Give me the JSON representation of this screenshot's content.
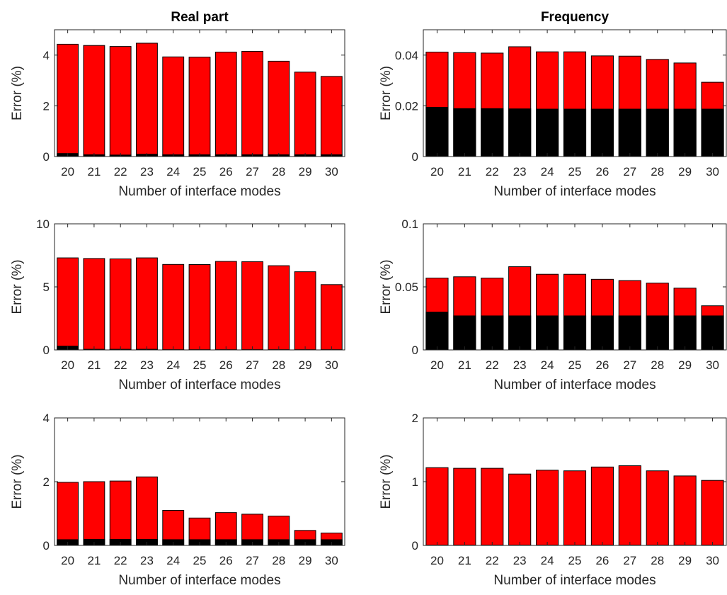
{
  "colors": {
    "total_bar": "#ff0000",
    "inner_bar": "#000000",
    "axis": "#262626"
  },
  "column_titles": [
    "Real part",
    "Frequency"
  ],
  "chart_data": [
    {
      "type": "bar",
      "title": "Real part",
      "xlabel": "Number of interface modes",
      "ylabel": "Error (%)",
      "categories": [
        "20",
        "21",
        "22",
        "23",
        "24",
        "25",
        "26",
        "27",
        "28",
        "29",
        "30"
      ],
      "ylim": [
        0,
        5
      ],
      "yticks": [
        0,
        2,
        4
      ],
      "series": [
        {
          "values": [
            4.43,
            4.38,
            4.34,
            4.47,
            3.93,
            3.92,
            4.12,
            4.15,
            3.76,
            3.33,
            3.16
          ]
        },
        {
          "values": [
            0.12,
            0.07,
            0.06,
            0.09,
            0.07,
            0.07,
            0.07,
            0.07,
            0.07,
            0.07,
            0.07
          ]
        }
      ]
    },
    {
      "type": "bar",
      "title": "Frequency",
      "xlabel": "Number of interface modes",
      "ylabel": "Error (%)",
      "categories": [
        "20",
        "21",
        "22",
        "23",
        "24",
        "25",
        "26",
        "27",
        "28",
        "29",
        "30"
      ],
      "ylim": [
        0,
        0.05
      ],
      "yticks": [
        0,
        0.02,
        0.04
      ],
      "series": [
        {
          "values": [
            0.0412,
            0.041,
            0.0408,
            0.0433,
            0.0413,
            0.0413,
            0.0397,
            0.0396,
            0.0383,
            0.0369,
            0.0293
          ]
        },
        {
          "values": [
            0.0194,
            0.0189,
            0.0189,
            0.0188,
            0.0187,
            0.0187,
            0.0187,
            0.0187,
            0.0187,
            0.0187,
            0.0187
          ]
        }
      ]
    },
    {
      "type": "bar",
      "title": "",
      "xlabel": "Number of interface modes",
      "ylabel": "Error (%)",
      "categories": [
        "20",
        "21",
        "22",
        "23",
        "24",
        "25",
        "26",
        "27",
        "28",
        "29",
        "30"
      ],
      "ylim": [
        0,
        10
      ],
      "yticks": [
        0,
        5,
        10
      ],
      "series": [
        {
          "values": [
            7.3,
            7.25,
            7.22,
            7.3,
            6.78,
            6.77,
            7.02,
            7.0,
            6.68,
            6.2,
            5.18
          ]
        },
        {
          "values": [
            0.3,
            0.05,
            0.05,
            0.05,
            0.02,
            0.02,
            0.02,
            0.02,
            0.02,
            0.02,
            0.02
          ]
        }
      ]
    },
    {
      "type": "bar",
      "title": "",
      "xlabel": "Number of interface modes",
      "ylabel": "Error (%)",
      "categories": [
        "20",
        "21",
        "22",
        "23",
        "24",
        "25",
        "26",
        "27",
        "28",
        "29",
        "30"
      ],
      "ylim": [
        0,
        0.1
      ],
      "yticks": [
        0,
        0.05,
        0.1
      ],
      "series": [
        {
          "values": [
            0.057,
            0.058,
            0.057,
            0.066,
            0.06,
            0.06,
            0.056,
            0.055,
            0.053,
            0.049,
            0.035
          ]
        },
        {
          "values": [
            0.03,
            0.027,
            0.027,
            0.027,
            0.027,
            0.027,
            0.027,
            0.027,
            0.027,
            0.027,
            0.027
          ]
        }
      ]
    },
    {
      "type": "bar",
      "title": "",
      "xlabel": "Number of interface modes",
      "ylabel": "Error (%)",
      "categories": [
        "20",
        "21",
        "22",
        "23",
        "24",
        "25",
        "26",
        "27",
        "28",
        "29",
        "30"
      ],
      "ylim": [
        0,
        4
      ],
      "yticks": [
        0,
        2,
        4
      ],
      "series": [
        {
          "values": [
            1.98,
            2.0,
            2.02,
            2.15,
            1.1,
            0.86,
            1.03,
            0.98,
            0.92,
            0.47,
            0.39
          ]
        },
        {
          "values": [
            0.18,
            0.19,
            0.19,
            0.19,
            0.18,
            0.18,
            0.18,
            0.18,
            0.18,
            0.18,
            0.18
          ]
        }
      ]
    },
    {
      "type": "bar",
      "title": "",
      "xlabel": "Number of interface modes",
      "ylabel": "Error (%)",
      "categories": [
        "20",
        "21",
        "22",
        "23",
        "24",
        "25",
        "26",
        "27",
        "28",
        "29",
        "30"
      ],
      "ylim": [
        0,
        2
      ],
      "yticks": [
        0,
        1,
        2
      ],
      "series": [
        {
          "values": [
            1.22,
            1.21,
            1.21,
            1.12,
            1.18,
            1.17,
            1.23,
            1.25,
            1.17,
            1.09,
            1.02
          ]
        },
        {
          "values": [
            0.005,
            0.005,
            0.005,
            0.005,
            0.005,
            0.005,
            0.005,
            0.005,
            0.005,
            0.005,
            0.005
          ]
        }
      ]
    }
  ]
}
